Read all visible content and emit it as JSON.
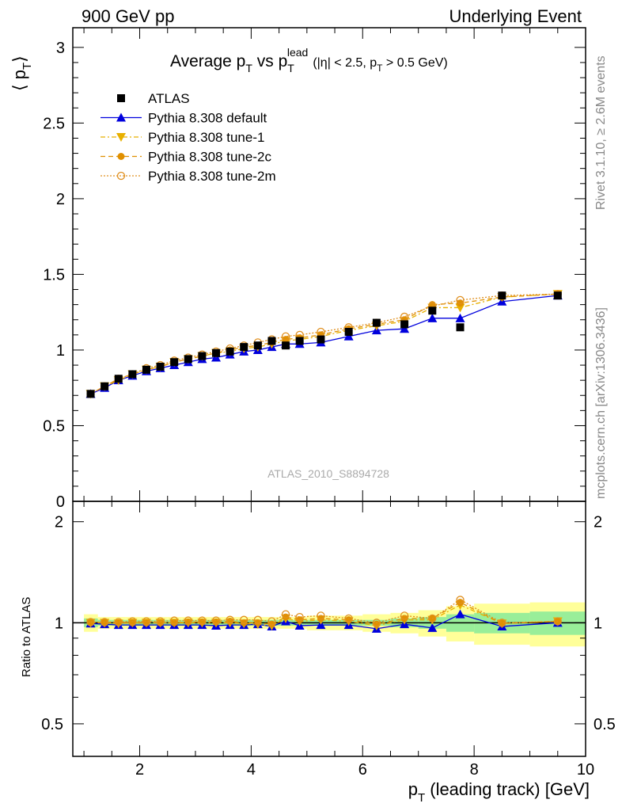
{
  "header": {
    "left": "900 GeV pp",
    "right": "Underlying Event"
  },
  "title": {
    "main": "Average p",
    "main_sub": "T",
    "vs": " vs p",
    "vs_sub": "T",
    "vs_sup": "lead",
    "cuts": "(|η| < 2.5, p",
    "cuts_sub": "T",
    "cuts_end": " > 0.5 GeV)"
  },
  "side": {
    "rivet": "Rivet 3.1.10, ≥ 2.6M events",
    "mcplots": "mcplots.cern.ch [arXiv:1306.3436]"
  },
  "analysis_id": "ATLAS_2010_S8894728",
  "axes": {
    "ylabel_main_left": "⟨ p",
    "ylabel_main_sub": "T",
    "ylabel_main_right": "⟩",
    "ylabel_ratio": "Ratio to ATLAS",
    "xlabel_main": "p",
    "xlabel_sub": "T",
    "xlabel_rest": " (leading track) [GeV]",
    "x_ticks": [
      "2",
      "4",
      "6",
      "8",
      "10"
    ],
    "y_ticks_main": [
      "0",
      "0.5",
      "1",
      "1.5",
      "2",
      "2.5",
      "3"
    ],
    "y_ticks_ratio": [
      "0.5",
      "1",
      "2"
    ]
  },
  "legend": [
    {
      "label": "ATLAS",
      "color": "#000000",
      "marker": "square"
    },
    {
      "label": "Pythia 8.308 default",
      "color": "#0000dd",
      "marker": "triangle-up"
    },
    {
      "label": "Pythia 8.308 tune-1",
      "color": "#e8b000",
      "marker": "triangle-down"
    },
    {
      "label": "Pythia 8.308 tune-2c",
      "color": "#e09000",
      "marker": "circle-filled"
    },
    {
      "label": "Pythia 8.308 tune-2m",
      "color": "#e09020",
      "marker": "circle-open"
    }
  ],
  "chart_data": {
    "type": "scatter",
    "xlim": [
      0.8,
      10.0
    ],
    "ylim_main": [
      0,
      3.13
    ],
    "ylim_ratio": [
      0.4,
      2.3
    ],
    "ratio_log_scale": true,
    "x": [
      1.12,
      1.37,
      1.62,
      1.87,
      2.12,
      2.37,
      2.62,
      2.87,
      3.12,
      3.37,
      3.62,
      3.87,
      4.12,
      4.37,
      4.62,
      4.87,
      5.25,
      5.75,
      6.25,
      6.75,
      7.25,
      7.75,
      8.5,
      9.5
    ],
    "series": [
      {
        "name": "ATLAS",
        "values": [
          0.71,
          0.76,
          0.81,
          0.84,
          0.87,
          0.89,
          0.92,
          0.94,
          0.96,
          0.98,
          0.99,
          1.02,
          1.03,
          1.06,
          1.03,
          1.06,
          1.07,
          1.12,
          1.18,
          1.17,
          1.26,
          1.15,
          1.36,
          1.36
        ]
      },
      {
        "name": "Pythia 8.308 default",
        "values": [
          0.71,
          0.75,
          0.8,
          0.83,
          0.86,
          0.88,
          0.9,
          0.92,
          0.94,
          0.95,
          0.97,
          0.99,
          1.0,
          1.02,
          1.04,
          1.04,
          1.05,
          1.09,
          1.13,
          1.14,
          1.21,
          1.21,
          1.32,
          1.36
        ]
      },
      {
        "name": "Pythia 8.308 tune-1",
        "values": [
          0.71,
          0.76,
          0.8,
          0.84,
          0.87,
          0.89,
          0.92,
          0.94,
          0.96,
          0.98,
          0.99,
          1.01,
          1.02,
          1.04,
          1.06,
          1.07,
          1.09,
          1.13,
          1.16,
          1.19,
          1.28,
          1.28,
          1.35,
          1.37
        ]
      },
      {
        "name": "Pythia 8.308 tune-2c",
        "values": [
          0.71,
          0.76,
          0.81,
          0.84,
          0.87,
          0.89,
          0.92,
          0.94,
          0.96,
          0.98,
          1.0,
          1.02,
          1.03,
          1.05,
          1.07,
          1.08,
          1.1,
          1.14,
          1.17,
          1.2,
          1.3,
          1.31,
          1.35,
          1.37
        ]
      },
      {
        "name": "Pythia 8.308 tune-2m",
        "values": [
          0.71,
          0.76,
          0.81,
          0.84,
          0.88,
          0.9,
          0.93,
          0.95,
          0.97,
          0.99,
          1.01,
          1.03,
          1.05,
          1.07,
          1.09,
          1.1,
          1.12,
          1.15,
          1.18,
          1.22,
          1.29,
          1.33,
          1.36,
          1.37
        ]
      }
    ],
    "ratio_series": [
      {
        "name": "Pythia 8.308 default",
        "values": [
          0.995,
          0.99,
          0.985,
          0.985,
          0.985,
          0.985,
          0.985,
          0.985,
          0.985,
          0.98,
          0.985,
          0.985,
          0.99,
          0.975,
          1.01,
          0.98,
          0.985,
          0.985,
          0.96,
          0.99,
          0.965,
          1.06,
          0.975,
          1.0
        ]
      },
      {
        "name": "Pythia 8.308 tune-1",
        "values": [
          1.0,
          1.0,
          0.995,
          1.0,
          1.0,
          1.0,
          1.0,
          1.0,
          1.0,
          1.0,
          1.0,
          0.995,
          0.99,
          0.98,
          1.03,
          1.01,
          1.02,
          1.01,
          0.98,
          1.02,
          1.02,
          1.13,
          0.995,
          1.01
        ]
      },
      {
        "name": "Pythia 8.308 tune-2c",
        "values": [
          1.0,
          1.0,
          1.0,
          1.0,
          1.0,
          1.0,
          1.0,
          1.005,
          1.005,
          1.005,
          1.01,
          1.0,
          1.0,
          0.99,
          1.04,
          1.02,
          1.03,
          1.02,
          0.99,
          1.03,
          1.03,
          1.15,
          0.995,
          1.01
        ]
      },
      {
        "name": "Pythia 8.308 tune-2m",
        "values": [
          1.005,
          1.005,
          1.005,
          1.01,
          1.01,
          1.01,
          1.015,
          1.015,
          1.015,
          1.015,
          1.02,
          1.02,
          1.02,
          1.01,
          1.06,
          1.04,
          1.05,
          1.03,
          1.0,
          1.05,
          1.03,
          1.17,
          1.0,
          1.01
        ]
      }
    ],
    "ratio_bands": {
      "x_edges": [
        1.0,
        1.25,
        1.5,
        1.75,
        2.0,
        2.25,
        2.5,
        2.75,
        3.0,
        3.25,
        3.5,
        3.75,
        4.0,
        4.25,
        4.5,
        4.75,
        5.0,
        5.5,
        6.0,
        6.5,
        7.0,
        7.5,
        8.0,
        9.0,
        10.0
      ],
      "inner": [
        0.03,
        0.02,
        0.02,
        0.02,
        0.02,
        0.02,
        0.02,
        0.02,
        0.02,
        0.02,
        0.02,
        0.02,
        0.02,
        0.02,
        0.02,
        0.02,
        0.02,
        0.02,
        0.02,
        0.03,
        0.04,
        0.06,
        0.07,
        0.08
      ],
      "outer": [
        0.06,
        0.04,
        0.04,
        0.04,
        0.04,
        0.04,
        0.04,
        0.04,
        0.04,
        0.04,
        0.04,
        0.04,
        0.04,
        0.04,
        0.04,
        0.04,
        0.05,
        0.05,
        0.06,
        0.07,
        0.09,
        0.12,
        0.14,
        0.15
      ]
    }
  }
}
